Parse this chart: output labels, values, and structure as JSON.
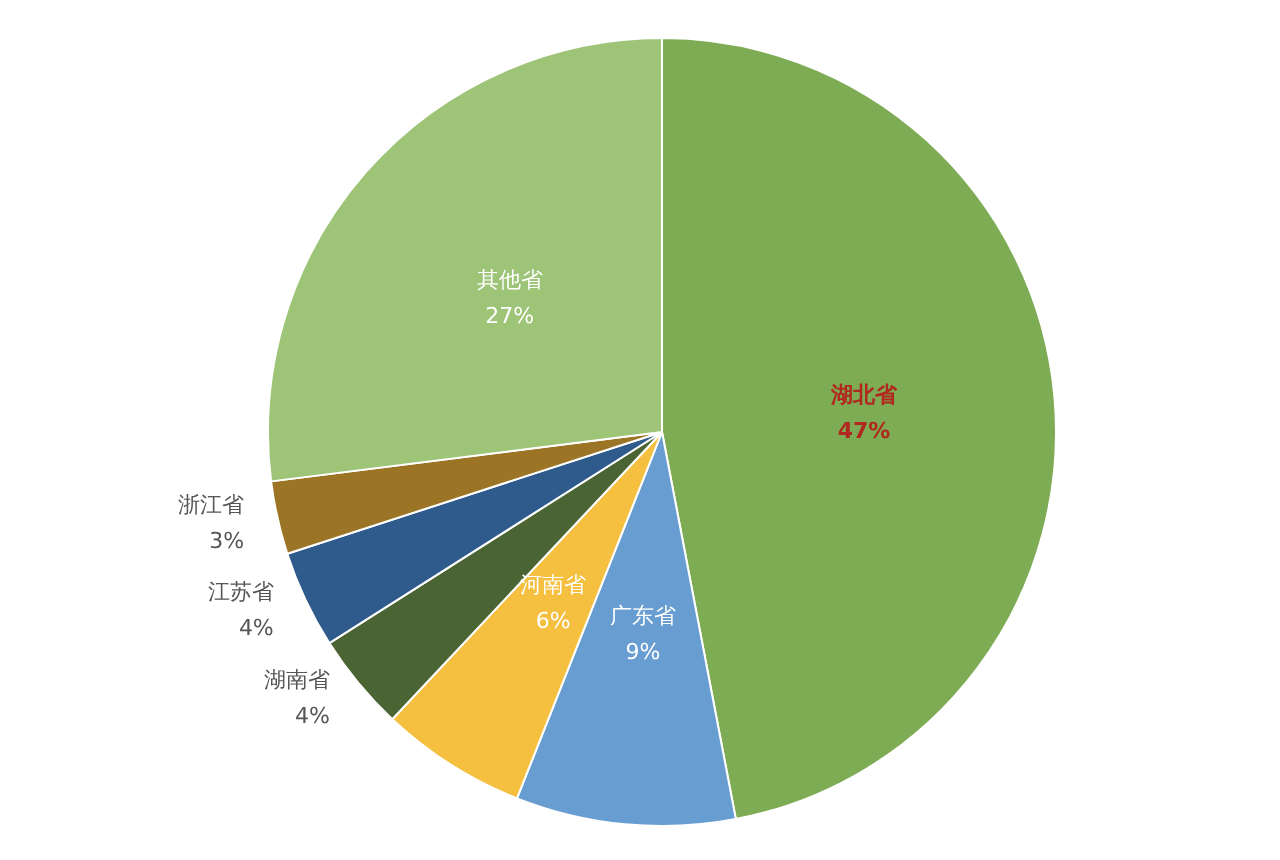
{
  "chart_data": {
    "type": "pie",
    "categories": [
      "湖北省",
      "广东省",
      "河南省",
      "湖南省",
      "江苏省",
      "浙江省",
      "其他省"
    ],
    "values": [
      47,
      9,
      6,
      4,
      4,
      3,
      27
    ],
    "value_labels": [
      "47%",
      "9%",
      "6%",
      "4%",
      "4%",
      "3%",
      "27%"
    ],
    "colors": [
      "#7eac55",
      "#689dd2",
      "#f5bf40",
      "#4b6433",
      "#2f5a8c",
      "#9b7426",
      "#9dc477"
    ],
    "legend": false
  }
}
